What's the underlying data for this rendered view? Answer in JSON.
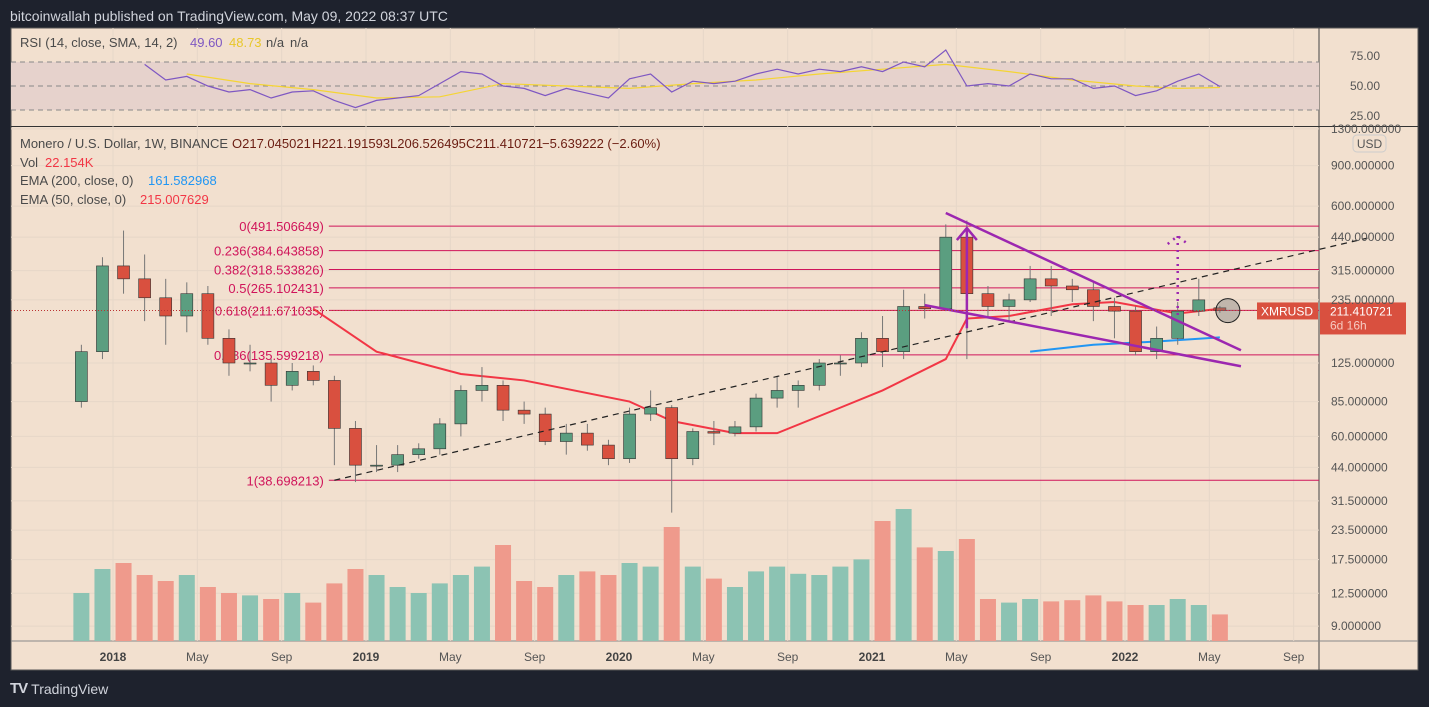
{
  "header": {
    "published": "bitcoinwallah published on TradingView.com, May 09, 2022 08:37 UTC"
  },
  "footer": {
    "logo": "TradingView"
  },
  "legend": {
    "rsi": {
      "label": "RSI (14, close, SMA, 14, 2)",
      "value": "49.60",
      "sma": "48.73",
      "na1": "n/a",
      "na2": "n/a",
      "value_color": "#7e57c2",
      "sma_color": "#f5d533"
    },
    "symbol": "Monero / U.S. Dollar, 1W, BINANCE",
    "open": "O217.045021",
    "high": "H221.191593",
    "low": "L206.526495",
    "close": "C211.410721",
    "change": "−5.639222 (−2.60%)",
    "vol_label": "Vol",
    "vol_value": "22.154K",
    "ema200_label": "EMA (200, close, 0)",
    "ema200_value": "161.582968",
    "ema50_label": "EMA (50, close, 0)",
    "ema50_value": "215.007629"
  },
  "price_axis": {
    "currency": "USD",
    "last_symbol": "XMRUSD",
    "last_price": "211.410721",
    "countdown": "6d 16h"
  },
  "colors": {
    "up": "#5b9e80",
    "down": "#d9503f",
    "vol_up": "#8cc3b3",
    "vol_down": "#ef9a8c",
    "ema50": "#f23645",
    "ema200": "#2196f3",
    "fib": "#d0145a",
    "wedge": "#9c27b0",
    "bg": "#f2e0cf",
    "rsi": "#7e57c2",
    "rsi_sma": "#f5d533"
  },
  "chart_data": {
    "type": "candlestick",
    "title": "Monero / U.S. Dollar, 1W, BINANCE",
    "yscale": "log",
    "ylim": [
      8.5,
      1350
    ],
    "y_ticks": [
      "1300.000000",
      "900.000000",
      "600.000000",
      "440.000000",
      "315.000000",
      "235.000000",
      "125.000000",
      "85.000000",
      "60.000000",
      "44.000000",
      "31.500000",
      "23.500000",
      "17.500000",
      "12.500000",
      "9.000000"
    ],
    "x_ticks": [
      {
        "label": "2018",
        "date": "2018-01",
        "bold": true
      },
      {
        "label": "May",
        "date": "2018-05"
      },
      {
        "label": "Sep",
        "date": "2018-09"
      },
      {
        "label": "2019",
        "date": "2019-01",
        "bold": true
      },
      {
        "label": "May",
        "date": "2019-05"
      },
      {
        "label": "Sep",
        "date": "2019-09"
      },
      {
        "label": "2020",
        "date": "2020-01",
        "bold": true
      },
      {
        "label": "May",
        "date": "2020-05"
      },
      {
        "label": "Sep",
        "date": "2020-09"
      },
      {
        "label": "2021",
        "date": "2021-01",
        "bold": true
      },
      {
        "label": "May",
        "date": "2021-05"
      },
      {
        "label": "Sep",
        "date": "2021-09"
      },
      {
        "label": "2022",
        "date": "2022-01",
        "bold": true
      },
      {
        "label": "May",
        "date": "2022-05"
      },
      {
        "label": "Sep",
        "date": "2022-09"
      }
    ],
    "candles": [
      [
        "2017-11",
        85,
        150,
        80,
        140
      ],
      [
        "2017-12",
        140,
        360,
        130,
        330
      ],
      [
        "2018-01",
        330,
        470,
        250,
        290
      ],
      [
        "2018-02",
        290,
        370,
        190,
        240
      ],
      [
        "2018-03",
        240,
        290,
        150,
        200
      ],
      [
        "2018-04",
        200,
        280,
        170,
        250
      ],
      [
        "2018-05",
        250,
        270,
        150,
        160
      ],
      [
        "2018-06",
        160,
        175,
        110,
        125
      ],
      [
        "2018-07",
        125,
        150,
        115,
        125
      ],
      [
        "2018-08",
        125,
        130,
        85,
        100
      ],
      [
        "2018-09",
        100,
        125,
        95,
        115
      ],
      [
        "2018-10",
        115,
        122,
        100,
        105
      ],
      [
        "2018-11",
        105,
        110,
        45,
        65
      ],
      [
        "2018-12",
        65,
        70,
        38,
        45
      ],
      [
        "2019-01",
        45,
        55,
        42,
        45
      ],
      [
        "2019-02",
        45,
        55,
        42,
        50
      ],
      [
        "2019-03",
        50,
        56,
        48,
        53
      ],
      [
        "2019-04",
        53,
        72,
        50,
        68
      ],
      [
        "2019-05",
        68,
        100,
        60,
        95
      ],
      [
        "2019-06",
        95,
        120,
        85,
        100
      ],
      [
        "2019-07",
        100,
        105,
        70,
        78
      ],
      [
        "2019-08",
        78,
        85,
        68,
        75
      ],
      [
        "2019-09",
        75,
        80,
        55,
        57
      ],
      [
        "2019-10",
        57,
        68,
        50,
        62
      ],
      [
        "2019-11",
        62,
        68,
        52,
        55
      ],
      [
        "2019-12",
        55,
        58,
        45,
        48
      ],
      [
        "2020-01",
        48,
        80,
        46,
        75
      ],
      [
        "2020-02",
        75,
        95,
        70,
        80
      ],
      [
        "2020-03",
        80,
        82,
        28,
        48
      ],
      [
        "2020-04",
        48,
        65,
        45,
        63
      ],
      [
        "2020-05",
        63,
        70,
        55,
        62
      ],
      [
        "2020-06",
        62,
        70,
        60,
        66
      ],
      [
        "2020-07",
        66,
        92,
        63,
        88
      ],
      [
        "2020-08",
        88,
        110,
        80,
        95
      ],
      [
        "2020-09",
        95,
        105,
        80,
        100
      ],
      [
        "2020-10",
        100,
        130,
        95,
        125
      ],
      [
        "2020-11",
        125,
        135,
        110,
        125
      ],
      [
        "2020-12",
        125,
        170,
        120,
        160
      ],
      [
        "2021-01",
        160,
        200,
        120,
        140
      ],
      [
        "2021-02",
        140,
        260,
        130,
        220
      ],
      [
        "2021-03",
        220,
        250,
        195,
        215
      ],
      [
        "2021-04",
        215,
        500,
        210,
        440
      ],
      [
        "2021-05",
        440,
        520,
        130,
        250
      ],
      [
        "2021-06",
        250,
        270,
        195,
        220
      ],
      [
        "2021-07",
        220,
        250,
        190,
        235
      ],
      [
        "2021-08",
        235,
        330,
        230,
        290
      ],
      [
        "2021-09",
        290,
        330,
        200,
        270
      ],
      [
        "2021-10",
        270,
        290,
        230,
        260
      ],
      [
        "2021-11",
        260,
        280,
        190,
        220
      ],
      [
        "2021-12",
        220,
        240,
        160,
        210
      ],
      [
        "2022-01",
        210,
        220,
        135,
        140
      ],
      [
        "2022-02",
        140,
        180,
        130,
        160
      ],
      [
        "2022-03",
        160,
        230,
        150,
        210
      ],
      [
        "2022-04",
        210,
        290,
        200,
        235
      ],
      [
        "2022-05",
        217.045021,
        221.191593,
        206.526495,
        211.410721
      ]
    ],
    "volume": [
      [
        "2017-11",
        40
      ],
      [
        "2017-12",
        60
      ],
      [
        "2018-01",
        65
      ],
      [
        "2018-02",
        55
      ],
      [
        "2018-03",
        50
      ],
      [
        "2018-04",
        55
      ],
      [
        "2018-05",
        45
      ],
      [
        "2018-06",
        40
      ],
      [
        "2018-07",
        38
      ],
      [
        "2018-08",
        35
      ],
      [
        "2018-09",
        40
      ],
      [
        "2018-10",
        32
      ],
      [
        "2018-11",
        48
      ],
      [
        "2018-12",
        60
      ],
      [
        "2019-01",
        55
      ],
      [
        "2019-02",
        45
      ],
      [
        "2019-03",
        40
      ],
      [
        "2019-04",
        48
      ],
      [
        "2019-05",
        55
      ],
      [
        "2019-06",
        62
      ],
      [
        "2019-07",
        80
      ],
      [
        "2019-08",
        50
      ],
      [
        "2019-09",
        45
      ],
      [
        "2019-10",
        55
      ],
      [
        "2019-11",
        58
      ],
      [
        "2019-12",
        55
      ],
      [
        "2020-01",
        65
      ],
      [
        "2020-02",
        62
      ],
      [
        "2020-03",
        95
      ],
      [
        "2020-04",
        62
      ],
      [
        "2020-05",
        52
      ],
      [
        "2020-06",
        45
      ],
      [
        "2020-07",
        58
      ],
      [
        "2020-08",
        62
      ],
      [
        "2020-09",
        56
      ],
      [
        "2020-10",
        55
      ],
      [
        "2020-11",
        62
      ],
      [
        "2020-12",
        68
      ],
      [
        "2021-01",
        100
      ],
      [
        "2021-02",
        110
      ],
      [
        "2021-03",
        78
      ],
      [
        "2021-04",
        75
      ],
      [
        "2021-05",
        85
      ],
      [
        "2021-06",
        35
      ],
      [
        "2021-07",
        32
      ],
      [
        "2021-08",
        35
      ],
      [
        "2021-09",
        33
      ],
      [
        "2021-10",
        34
      ],
      [
        "2021-11",
        38
      ],
      [
        "2021-12",
        33
      ],
      [
        "2022-01",
        30
      ],
      [
        "2022-02",
        30
      ],
      [
        "2022-03",
        35
      ],
      [
        "2022-04",
        30
      ],
      [
        "2022-05",
        22.154
      ]
    ],
    "ema50": [
      [
        "2018-10",
        215
      ],
      [
        "2019-01",
        140
      ],
      [
        "2019-05",
        112
      ],
      [
        "2019-08",
        105
      ],
      [
        "2020-01",
        85
      ],
      [
        "2020-03",
        70
      ],
      [
        "2020-06",
        62
      ],
      [
        "2020-08",
        62
      ],
      [
        "2020-11",
        80
      ],
      [
        "2021-01",
        95
      ],
      [
        "2021-04",
        130
      ],
      [
        "2021-05",
        195
      ],
      [
        "2021-07",
        200
      ],
      [
        "2021-10",
        225
      ],
      [
        "2021-12",
        230
      ],
      [
        "2022-03",
        205
      ],
      [
        "2022-05",
        215.007629
      ]
    ],
    "ema200": [
      [
        "2021-08",
        140
      ],
      [
        "2021-11",
        150
      ],
      [
        "2022-02",
        155
      ],
      [
        "2022-05",
        161.582968
      ]
    ],
    "fib_levels": [
      {
        "label": "0(491.506649)",
        "value": 491.506649
      },
      {
        "label": "0.236(384.643858)",
        "value": 384.643858
      },
      {
        "label": "0.382(318.533826)",
        "value": 318.533826
      },
      {
        "label": "0.5(265.102431)",
        "value": 265.102431
      },
      {
        "label": "0.618(211.671035)",
        "value": 211.671035
      },
      {
        "label": "0.786(135.599218)",
        "value": 135.599218
      },
      {
        "label": "1(38.698213)",
        "value": 38.698213
      }
    ],
    "fib_start": "2018-11",
    "drawings": {
      "trendline_dashed": [
        [
          "2018-11",
          38.7
        ],
        [
          "2022-12",
          436
        ]
      ],
      "wedge_upper": [
        [
          "2021-04",
          560
        ],
        [
          "2022-06",
          142
        ]
      ],
      "wedge_lower": [
        [
          "2021-03",
          223
        ],
        [
          "2022-06",
          121
        ]
      ],
      "arrow_solid": [
        [
          "2021-05",
          177
        ],
        [
          "2021-05",
          482
        ]
      ],
      "arrow_dotted": [
        [
          "2022-03",
          202
        ],
        [
          "2022-03",
          445
        ]
      ],
      "circle": [
        "2022-05",
        211
      ]
    },
    "rsi_ticks": [
      "75.00",
      "50.00",
      "25.00"
    ],
    "rsi": [
      [
        "2018-02",
        68
      ],
      [
        "2018-03",
        55
      ],
      [
        "2018-04",
        58
      ],
      [
        "2018-05",
        50
      ],
      [
        "2018-06",
        45
      ],
      [
        "2018-07",
        47
      ],
      [
        "2018-08",
        40
      ],
      [
        "2018-09",
        45
      ],
      [
        "2018-10",
        46
      ],
      [
        "2018-11",
        38
      ],
      [
        "2018-12",
        32
      ],
      [
        "2019-01",
        38
      ],
      [
        "2019-02",
        40
      ],
      [
        "2019-03",
        42
      ],
      [
        "2019-04",
        52
      ],
      [
        "2019-05",
        62
      ],
      [
        "2019-06",
        60
      ],
      [
        "2019-07",
        50
      ],
      [
        "2019-08",
        48
      ],
      [
        "2019-09",
        42
      ],
      [
        "2019-10",
        48
      ],
      [
        "2019-11",
        44
      ],
      [
        "2019-12",
        40
      ],
      [
        "2020-01",
        56
      ],
      [
        "2020-02",
        60
      ],
      [
        "2020-03",
        45
      ],
      [
        "2020-04",
        54
      ],
      [
        "2020-05",
        52
      ],
      [
        "2020-06",
        54
      ],
      [
        "2020-07",
        60
      ],
      [
        "2020-08",
        64
      ],
      [
        "2020-09",
        60
      ],
      [
        "2020-10",
        64
      ],
      [
        "2020-11",
        62
      ],
      [
        "2020-12",
        66
      ],
      [
        "2021-01",
        62
      ],
      [
        "2021-02",
        70
      ],
      [
        "2021-03",
        66
      ],
      [
        "2021-04",
        80
      ],
      [
        "2021-05",
        50
      ],
      [
        "2021-06",
        52
      ],
      [
        "2021-07",
        50
      ],
      [
        "2021-08",
        60
      ],
      [
        "2021-09",
        56
      ],
      [
        "2021-10",
        56
      ],
      [
        "2021-11",
        48
      ],
      [
        "2021-12",
        50
      ],
      [
        "2022-01",
        42
      ],
      [
        "2022-02",
        46
      ],
      [
        "2022-03",
        54
      ],
      [
        "2022-04",
        60
      ],
      [
        "2022-05",
        49.6
      ]
    ],
    "rsi_sma": [
      [
        "2018-04",
        60
      ],
      [
        "2018-07",
        52
      ],
      [
        "2018-10",
        47
      ],
      [
        "2019-01",
        40
      ],
      [
        "2019-04",
        41
      ],
      [
        "2019-07",
        52
      ],
      [
        "2019-10",
        50
      ],
      [
        "2020-01",
        48
      ],
      [
        "2020-04",
        52
      ],
      [
        "2020-07",
        55
      ],
      [
        "2020-10",
        60
      ],
      [
        "2021-01",
        64
      ],
      [
        "2021-04",
        68
      ],
      [
        "2021-07",
        62
      ],
      [
        "2021-10",
        55
      ],
      [
        "2022-01",
        50
      ],
      [
        "2022-03",
        48
      ],
      [
        "2022-05",
        48.73
      ]
    ]
  }
}
